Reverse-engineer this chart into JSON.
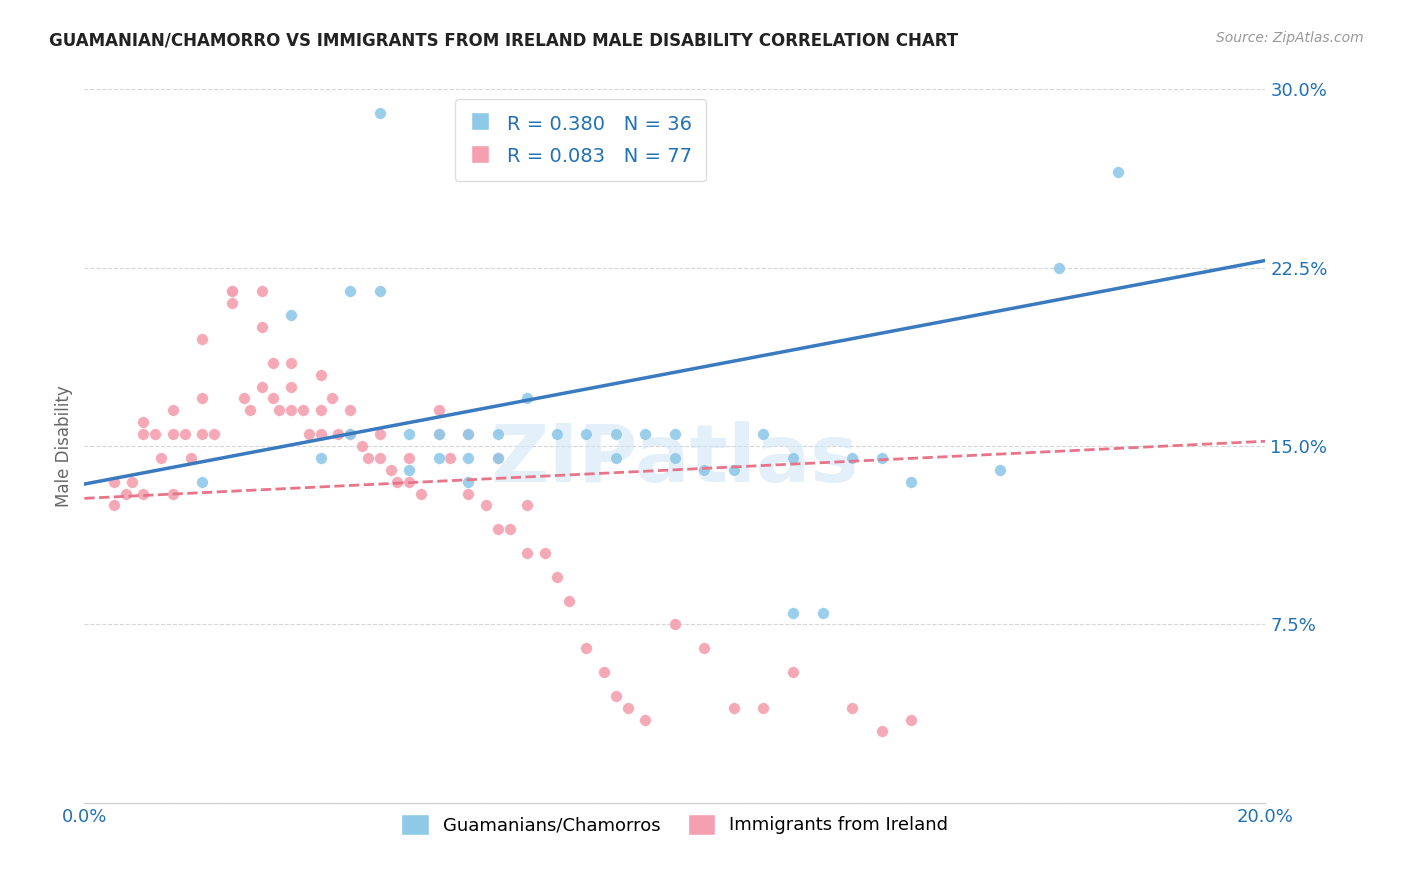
{
  "title": "GUAMANIAN/CHAMORRO VS IMMIGRANTS FROM IRELAND MALE DISABILITY CORRELATION CHART",
  "source": "Source: ZipAtlas.com",
  "ylabel": "Male Disability",
  "x_min": 0.0,
  "x_max": 0.2,
  "y_min": 0.0,
  "y_max": 0.3,
  "x_ticks": [
    0.0,
    0.05,
    0.1,
    0.15,
    0.2
  ],
  "x_tick_labels": [
    "0.0%",
    "",
    "",
    "",
    "20.0%"
  ],
  "y_ticks": [
    0.0,
    0.075,
    0.15,
    0.225,
    0.3
  ],
  "y_tick_labels": [
    "",
    "7.5%",
    "15.0%",
    "22.5%",
    "30.0%"
  ],
  "blue_color": "#8fc9e8",
  "pink_color": "#f4a0b0",
  "blue_line_color": "#3a7abf",
  "pink_line_color": "#e8748a",
  "legend_blue_R": "R = 0.380",
  "legend_blue_N": "N = 36",
  "legend_pink_R": "R = 0.083",
  "legend_pink_N": "N = 77",
  "watermark": "ZIPatlas",
  "blue_scatter_x": [
    0.02,
    0.035,
    0.04,
    0.045,
    0.045,
    0.05,
    0.05,
    0.055,
    0.055,
    0.06,
    0.06,
    0.065,
    0.065,
    0.065,
    0.07,
    0.07,
    0.075,
    0.08,
    0.085,
    0.09,
    0.09,
    0.095,
    0.1,
    0.1,
    0.105,
    0.11,
    0.115,
    0.12,
    0.12,
    0.125,
    0.13,
    0.135,
    0.14,
    0.155,
    0.165,
    0.175
  ],
  "blue_scatter_y": [
    0.135,
    0.205,
    0.145,
    0.215,
    0.155,
    0.29,
    0.215,
    0.155,
    0.14,
    0.155,
    0.145,
    0.155,
    0.145,
    0.135,
    0.155,
    0.145,
    0.17,
    0.155,
    0.155,
    0.155,
    0.145,
    0.155,
    0.155,
    0.145,
    0.14,
    0.14,
    0.155,
    0.145,
    0.08,
    0.08,
    0.145,
    0.145,
    0.135,
    0.14,
    0.225,
    0.265
  ],
  "pink_scatter_x": [
    0.005,
    0.005,
    0.007,
    0.008,
    0.01,
    0.01,
    0.01,
    0.012,
    0.013,
    0.015,
    0.015,
    0.015,
    0.017,
    0.018,
    0.02,
    0.02,
    0.02,
    0.022,
    0.025,
    0.025,
    0.025,
    0.027,
    0.028,
    0.03,
    0.03,
    0.03,
    0.032,
    0.032,
    0.033,
    0.035,
    0.035,
    0.035,
    0.037,
    0.038,
    0.04,
    0.04,
    0.04,
    0.042,
    0.043,
    0.045,
    0.045,
    0.047,
    0.048,
    0.05,
    0.05,
    0.052,
    0.053,
    0.055,
    0.055,
    0.057,
    0.06,
    0.06,
    0.062,
    0.065,
    0.065,
    0.068,
    0.07,
    0.07,
    0.072,
    0.075,
    0.075,
    0.078,
    0.08,
    0.082,
    0.085,
    0.088,
    0.09,
    0.092,
    0.095,
    0.1,
    0.105,
    0.11,
    0.115,
    0.12,
    0.13,
    0.135,
    0.14
  ],
  "pink_scatter_y": [
    0.135,
    0.125,
    0.13,
    0.135,
    0.16,
    0.155,
    0.13,
    0.155,
    0.145,
    0.165,
    0.155,
    0.13,
    0.155,
    0.145,
    0.195,
    0.17,
    0.155,
    0.155,
    0.215,
    0.215,
    0.21,
    0.17,
    0.165,
    0.215,
    0.2,
    0.175,
    0.185,
    0.17,
    0.165,
    0.185,
    0.175,
    0.165,
    0.165,
    0.155,
    0.18,
    0.165,
    0.155,
    0.17,
    0.155,
    0.165,
    0.155,
    0.15,
    0.145,
    0.155,
    0.145,
    0.14,
    0.135,
    0.145,
    0.135,
    0.13,
    0.165,
    0.155,
    0.145,
    0.155,
    0.13,
    0.125,
    0.145,
    0.115,
    0.115,
    0.125,
    0.105,
    0.105,
    0.095,
    0.085,
    0.065,
    0.055,
    0.045,
    0.04,
    0.035,
    0.075,
    0.065,
    0.04,
    0.04,
    0.055,
    0.04,
    0.03,
    0.035
  ],
  "blue_trendline_x": [
    0.0,
    0.2
  ],
  "blue_trendline_y": [
    0.134,
    0.228
  ],
  "pink_trendline_x": [
    0.0,
    0.2
  ],
  "pink_trendline_y": [
    0.128,
    0.152
  ]
}
